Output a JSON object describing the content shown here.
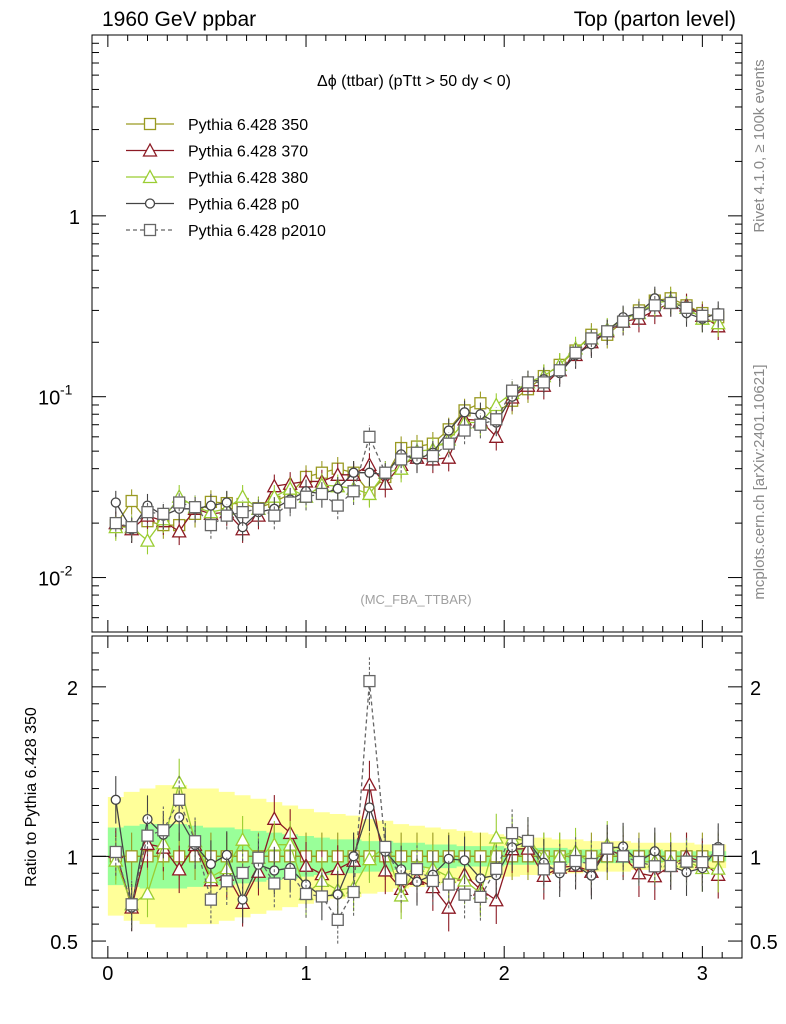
{
  "header": {
    "left": "1960 GeV ppbar",
    "right": "Top (parton level)"
  },
  "side": {
    "rivet": "Rivet 4.1.0, ≥ 100k events",
    "mcplots": "mcplots.cern.ch [arXiv:2401.10621]"
  },
  "chart_data": {
    "type": "line",
    "title": "Δϕ (ttbar) (pTtt > 50 dy < 0)",
    "watermark": "(MC_FBA_TTBAR)",
    "xlabel": "",
    "ylabel": "",
    "ratio_ylabel": "Ratio to Pythia 6.428 350",
    "xlim": [
      -0.08,
      3.2
    ],
    "ylim": [
      0.005,
      10
    ],
    "ratio_ylim": [
      0.4,
      2.3
    ],
    "x_ticks": [
      "0",
      "1",
      "2",
      "3"
    ],
    "y_ticks": [
      "10^-2",
      "10^-1",
      "1"
    ],
    "ratio_ticks": [
      "0.5",
      "1",
      "2"
    ],
    "x": [
      0.04,
      0.12,
      0.2,
      0.28,
      0.36,
      0.44,
      0.52,
      0.6,
      0.68,
      0.76,
      0.84,
      0.92,
      1.0,
      1.08,
      1.16,
      1.24,
      1.32,
      1.4,
      1.48,
      1.56,
      1.64,
      1.72,
      1.8,
      1.88,
      1.96,
      2.04,
      2.12,
      2.2,
      2.28,
      2.36,
      2.44,
      2.52,
      2.6,
      2.68,
      2.76,
      2.84,
      2.92,
      3.0,
      3.08
    ],
    "series": [
      {
        "name": "Pythia 6.428 350",
        "color": "#9a9a22",
        "marker": "square-open",
        "dash": false,
        "values": [
          0.0195,
          0.0265,
          0.0205,
          0.0195,
          0.0195,
          0.0225,
          0.0262,
          0.0258,
          0.0255,
          0.0242,
          0.0262,
          0.029,
          0.036,
          0.038,
          0.04,
          0.038,
          0.0295,
          0.036,
          0.052,
          0.053,
          0.055,
          0.066,
          0.084,
          0.092,
          0.081,
          0.095,
          0.11,
          0.13,
          0.15,
          0.18,
          0.22,
          0.22,
          0.26,
          0.3,
          0.34,
          0.35,
          0.32,
          0.29,
          0.275
        ]
      },
      {
        "name": "Pythia 6.428 370",
        "color": "#8c1a24",
        "marker": "triangle-open",
        "dash": false,
        "values": [
          0.02,
          0.0185,
          0.022,
          0.0205,
          0.018,
          0.024,
          0.0225,
          0.023,
          0.0185,
          0.022,
          0.032,
          0.033,
          0.034,
          0.034,
          0.037,
          0.037,
          0.042,
          0.033,
          0.042,
          0.046,
          0.045,
          0.046,
          0.075,
          0.074,
          0.06,
          0.099,
          0.115,
          0.115,
          0.14,
          0.17,
          0.2,
          0.23,
          0.26,
          0.27,
          0.3,
          0.33,
          0.32,
          0.28,
          0.245
        ]
      },
      {
        "name": "Pythia 6.428 380",
        "color": "#9acd32",
        "marker": "triangle-open",
        "dash": false,
        "values": [
          0.019,
          0.019,
          0.016,
          0.021,
          0.028,
          0.0245,
          0.023,
          0.024,
          0.028,
          0.024,
          0.028,
          0.031,
          0.028,
          0.0325,
          0.032,
          0.031,
          0.029,
          0.038,
          0.04,
          0.05,
          0.051,
          0.058,
          0.072,
          0.072,
          0.09,
          0.105,
          0.12,
          0.13,
          0.15,
          0.185,
          0.21,
          0.235,
          0.27,
          0.29,
          0.33,
          0.34,
          0.31,
          0.27,
          0.255
        ]
      },
      {
        "name": "Pythia 6.428 p0",
        "color": "#444444",
        "marker": "circle-open",
        "dash": false,
        "values": [
          0.026,
          0.0185,
          0.025,
          0.022,
          0.024,
          0.024,
          0.025,
          0.026,
          0.019,
          0.023,
          0.024,
          0.027,
          0.03,
          0.029,
          0.031,
          0.038,
          0.038,
          0.037,
          0.048,
          0.045,
          0.049,
          0.065,
          0.082,
          0.08,
          0.072,
          0.1,
          0.12,
          0.125,
          0.135,
          0.17,
          0.195,
          0.23,
          0.275,
          0.29,
          0.35,
          0.33,
          0.29,
          0.27,
          0.29
        ]
      },
      {
        "name": "Pythia 6.428 p2010",
        "color": "#666666",
        "marker": "square-open",
        "dash": true,
        "values": [
          0.02,
          0.019,
          0.023,
          0.0225,
          0.026,
          0.0245,
          0.0195,
          0.022,
          0.023,
          0.024,
          0.022,
          0.026,
          0.028,
          0.029,
          0.025,
          0.03,
          0.06,
          0.038,
          0.045,
          0.049,
          0.047,
          0.055,
          0.065,
          0.07,
          0.075,
          0.108,
          0.12,
          0.12,
          0.14,
          0.175,
          0.21,
          0.23,
          0.26,
          0.29,
          0.32,
          0.33,
          0.31,
          0.28,
          0.285
        ]
      }
    ],
    "band_yellow": [
      0.35,
      0.38,
      0.4,
      0.42,
      0.42,
      0.4,
      0.4,
      0.38,
      0.36,
      0.34,
      0.32,
      0.3,
      0.28,
      0.26,
      0.25,
      0.24,
      0.22,
      0.21,
      0.19,
      0.18,
      0.17,
      0.16,
      0.15,
      0.14,
      0.13,
      0.12,
      0.11,
      0.11,
      0.1,
      0.1,
      0.09,
      0.09,
      0.09,
      0.08,
      0.08,
      0.08,
      0.08,
      0.07,
      0.07
    ],
    "band_green": [
      0.17,
      0.18,
      0.19,
      0.19,
      0.19,
      0.18,
      0.17,
      0.17,
      0.16,
      0.15,
      0.14,
      0.13,
      0.12,
      0.11,
      0.1,
      0.1,
      0.09,
      0.09,
      0.08,
      0.08,
      0.07,
      0.07,
      0.06,
      0.06,
      0.06,
      0.05,
      0.05,
      0.05,
      0.05,
      0.04,
      0.04,
      0.04,
      0.04,
      0.04,
      0.04,
      0.03,
      0.03,
      0.03,
      0.03
    ]
  }
}
